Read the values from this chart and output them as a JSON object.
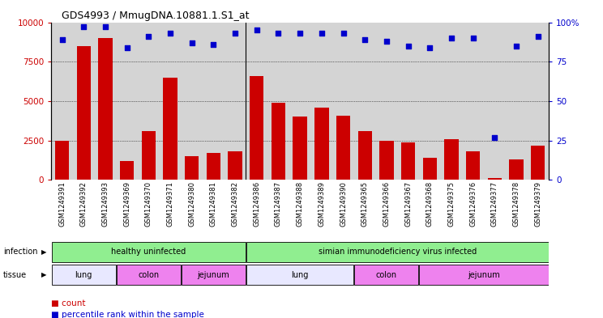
{
  "title": "GDS4993 / MmugDNA.10881.1.S1_at",
  "samples": [
    "GSM1249391",
    "GSM1249392",
    "GSM1249393",
    "GSM1249369",
    "GSM1249370",
    "GSM1249371",
    "GSM1249380",
    "GSM1249381",
    "GSM1249382",
    "GSM1249386",
    "GSM1249387",
    "GSM1249388",
    "GSM1249389",
    "GSM1249390",
    "GSM1249365",
    "GSM1249366",
    "GSM1249367",
    "GSM1249368",
    "GSM1249375",
    "GSM1249376",
    "GSM1249377",
    "GSM1249378",
    "GSM1249379"
  ],
  "counts": [
    2500,
    8500,
    9000,
    1200,
    3100,
    6500,
    1500,
    1700,
    1800,
    6600,
    4900,
    4000,
    4600,
    4100,
    3100,
    2500,
    2400,
    1400,
    2600,
    1800,
    100,
    1300,
    2200
  ],
  "percentiles": [
    89,
    97,
    97,
    84,
    91,
    93,
    87,
    86,
    93,
    95,
    93,
    93,
    93,
    93,
    89,
    88,
    85,
    84,
    90,
    90,
    27,
    85,
    91
  ],
  "bar_color": "#cc0000",
  "dot_color": "#0000cc",
  "background_color": "#d4d4d4",
  "ylim_left": [
    0,
    10000
  ],
  "ylim_right": [
    0,
    100
  ],
  "yticks_left": [
    0,
    2500,
    5000,
    7500,
    10000
  ],
  "yticks_right": [
    0,
    25,
    50,
    75,
    100
  ],
  "infection_groups": [
    {
      "label": "healthy uninfected",
      "start": 0,
      "end": 9,
      "color": "#90ee90"
    },
    {
      "label": "simian immunodeficiency virus infected",
      "start": 9,
      "end": 23,
      "color": "#90ee90"
    }
  ],
  "tissue_groups": [
    {
      "label": "lung",
      "start": 0,
      "end": 3,
      "color": "#e8e8ff"
    },
    {
      "label": "colon",
      "start": 3,
      "end": 6,
      "color": "#ee82ee"
    },
    {
      "label": "jejunum",
      "start": 6,
      "end": 9,
      "color": "#ee82ee"
    },
    {
      "label": "lung",
      "start": 9,
      "end": 14,
      "color": "#e8e8ff"
    },
    {
      "label": "colon",
      "start": 14,
      "end": 17,
      "color": "#ee82ee"
    },
    {
      "label": "jejunum",
      "start": 17,
      "end": 23,
      "color": "#ee82ee"
    }
  ]
}
